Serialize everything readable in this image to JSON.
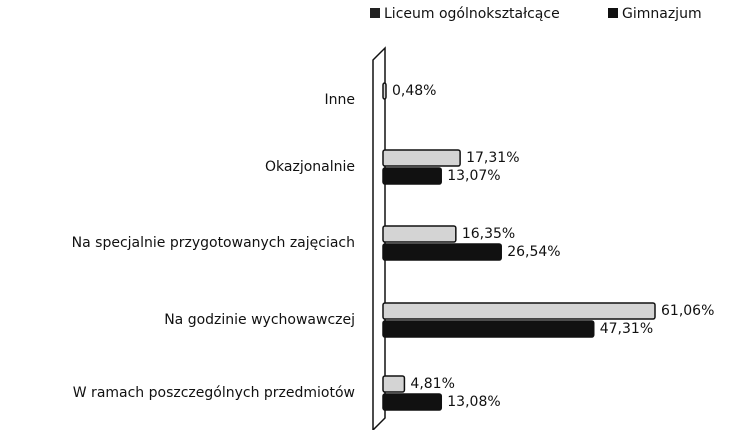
{
  "chart_data": {
    "type": "bar",
    "orientation": "horizontal",
    "categories": [
      "Inne",
      "Okazjonalnie",
      "Na specjalnie przygotowanych zajęciach",
      "Na godzinie wychowawczej",
      "W ramach poszczególnych przedmiotów"
    ],
    "series": [
      {
        "name": "Liceum ogólnokształcące",
        "color": "#d4d4d4",
        "values": [
          0.48,
          17.31,
          16.35,
          61.06,
          4.81
        ],
        "value_labels": [
          "0,48%",
          "17,31%",
          "16,35%",
          "61,06%",
          "4,81%"
        ]
      },
      {
        "name": "Gimnazjum",
        "color": "#111111",
        "values": [
          null,
          13.07,
          26.54,
          47.31,
          13.08
        ],
        "value_labels": [
          null,
          "13,07%",
          "26,54%",
          "47,31%",
          "13,08%"
        ]
      }
    ],
    "legend": "top"
  }
}
